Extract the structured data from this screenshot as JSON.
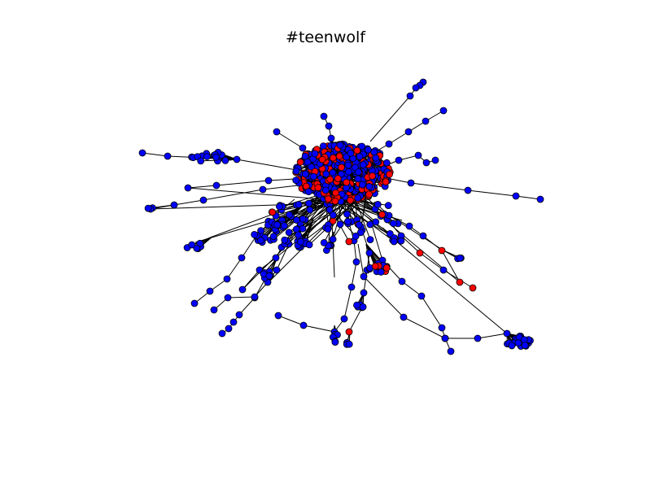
{
  "title": "#teenwolf",
  "colors": {
    "background": "#ffffff",
    "node_primary": "#0000ff",
    "node_secondary": "#ff0000",
    "node_stroke": "#000000",
    "edge": "#000000"
  }
}
